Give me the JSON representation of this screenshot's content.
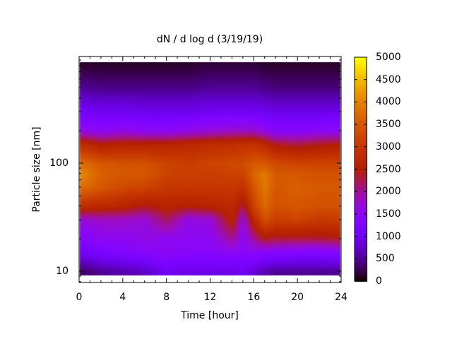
{
  "chart_data": {
    "type": "heatmap",
    "title": "dN / d log d (3/19/19)",
    "xlabel": "Time [hour]",
    "ylabel": "Particle size [nm]",
    "xlim": [
      0,
      24
    ],
    "ylim": [
      7.8,
      970
    ],
    "yscale": "log",
    "xticks": [
      "0",
      "4",
      "8",
      "12",
      "16",
      "20",
      "24"
    ],
    "yticks": [
      "10",
      "100"
    ],
    "colorbar": {
      "range": [
        0,
        5000
      ],
      "ticks": [
        "0",
        "500",
        "1000",
        "1500",
        "2000",
        "2500",
        "3000",
        "3500",
        "4000",
        "4500",
        "5000"
      ],
      "palette": "black-blue-purple-red-orange-yellow"
    },
    "x": [
      0,
      2,
      4,
      6,
      8,
      10,
      12,
      14,
      15,
      16,
      17,
      18,
      20,
      22,
      24
    ],
    "y": [
      10,
      15,
      20,
      30,
      40,
      60,
      80,
      100,
      150,
      200,
      300,
      500,
      800
    ],
    "z": [
      [
        300,
        1000,
        1300,
        1700,
        2800,
        3800,
        4100,
        3800,
        2800,
        1600,
        1100,
        500,
        150
      ],
      [
        500,
        1200,
        1500,
        1800,
        2700,
        3500,
        3600,
        3500,
        2500,
        1500,
        1000,
        450,
        150
      ],
      [
        600,
        1300,
        1500,
        1800,
        2600,
        3300,
        3500,
        3400,
        2600,
        1600,
        1000,
        450,
        150
      ],
      [
        700,
        1400,
        1600,
        1700,
        2400,
        3200,
        3500,
        3400,
        2600,
        1500,
        950,
        450,
        150
      ],
      [
        1000,
        1500,
        1500,
        2200,
        2600,
        3000,
        3200,
        3200,
        2600,
        1500,
        950,
        450,
        150
      ],
      [
        900,
        1400,
        1500,
        1600,
        2500,
        3000,
        3100,
        3100,
        2700,
        1600,
        950,
        450,
        150
      ],
      [
        900,
        1400,
        1500,
        1700,
        2600,
        3000,
        3100,
        3200,
        2800,
        1700,
        1000,
        500,
        200
      ],
      [
        900,
        1500,
        2000,
        2600,
        2700,
        3000,
        3200,
        3300,
        2800,
        1800,
        1000,
        500,
        200
      ],
      [
        1000,
        1400,
        1500,
        1700,
        2300,
        2900,
        3200,
        3300,
        2900,
        1800,
        1000,
        500,
        200
      ],
      [
        800,
        1500,
        2000,
        2700,
        3200,
        3500,
        3700,
        3500,
        2900,
        1800,
        1000,
        500,
        200
      ],
      [
        600,
        1400,
        2400,
        3400,
        3700,
        3900,
        3900,
        3500,
        2700,
        1600,
        950,
        450,
        150
      ],
      [
        500,
        1400,
        2300,
        3100,
        3400,
        3500,
        3500,
        3300,
        2400,
        1400,
        900,
        400,
        150
      ],
      [
        500,
        1300,
        2300,
        3200,
        3500,
        3600,
        3500,
        3200,
        2300,
        1400,
        900,
        400,
        150
      ],
      [
        500,
        1300,
        2300,
        3000,
        3400,
        3500,
        3400,
        3200,
        2400,
        1500,
        900,
        400,
        150
      ],
      [
        500,
        1400,
        2400,
        3100,
        3400,
        3500,
        3400,
        3200,
        2500,
        1500,
        950,
        400,
        150
      ]
    ]
  }
}
